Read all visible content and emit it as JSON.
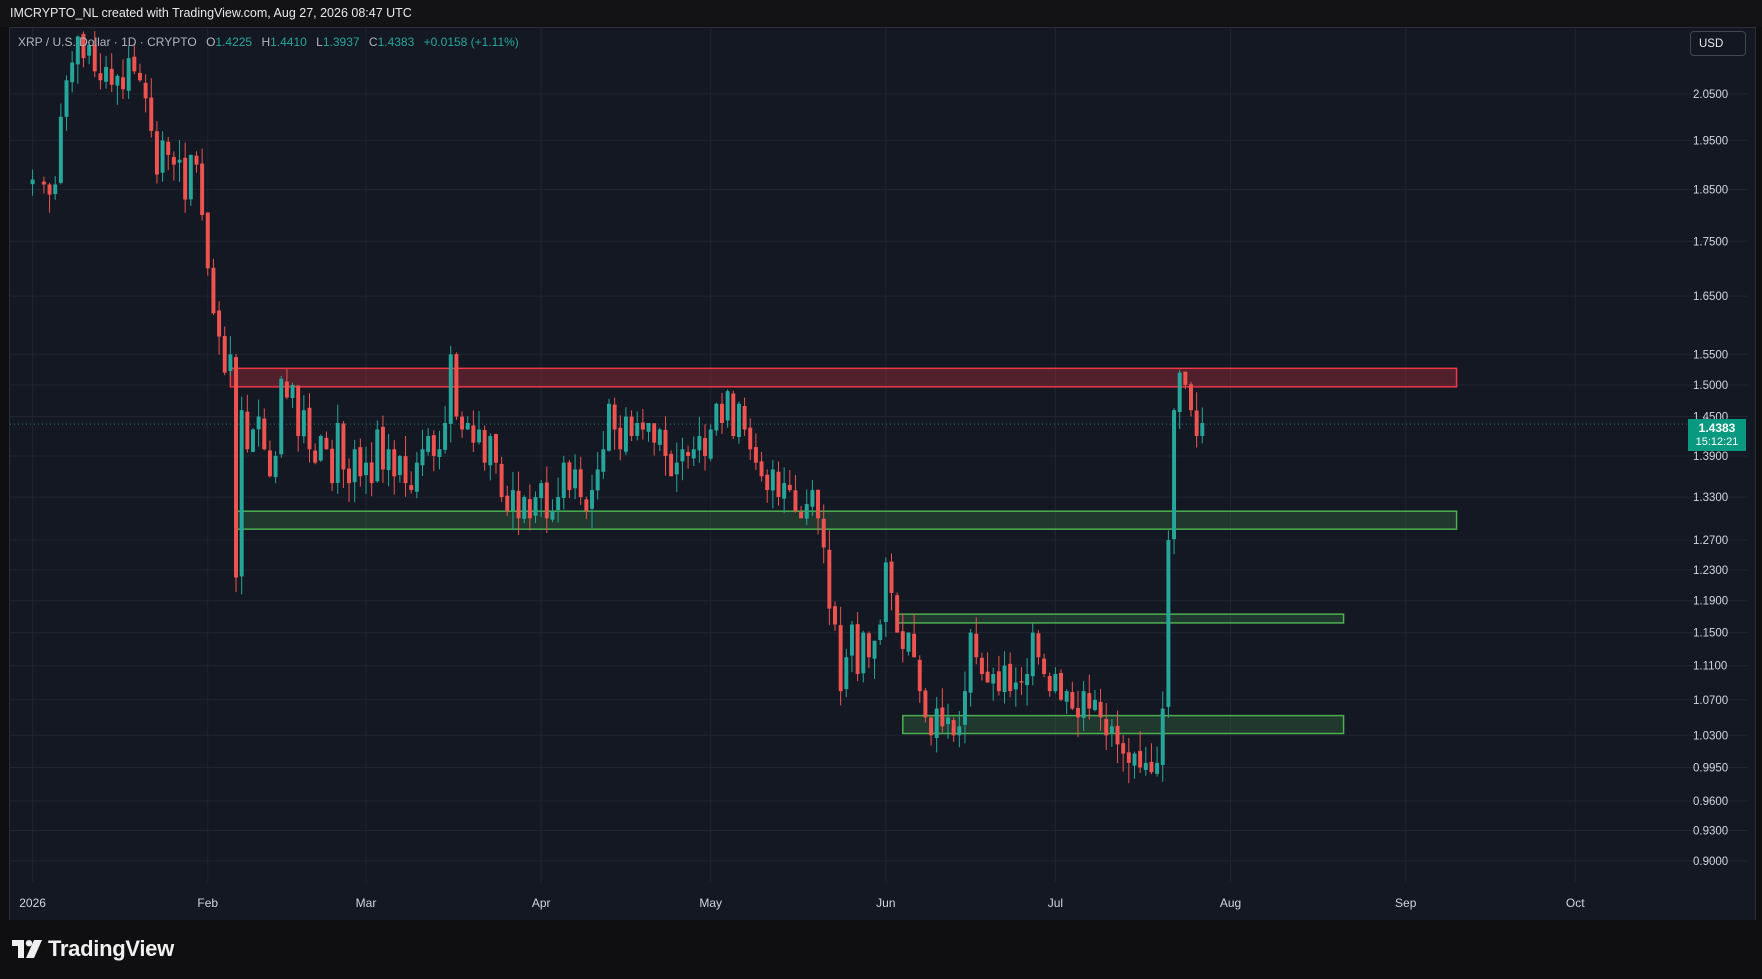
{
  "header": {
    "attribution": "IMCRYPTO_NL created with TradingView.com, Aug 27, 2026 08:47 UTC"
  },
  "legend": {
    "symbol": "XRP / U.S. Dollar · 1D · CRYPTO",
    "open_label": "O",
    "open": "1.4225",
    "high_label": "H",
    "high": "1.4410",
    "low_label": "L",
    "low": "1.3937",
    "close_label": "C",
    "close": "1.4383",
    "change": "+0.0158 (+1.11%)"
  },
  "currency_button": "USD",
  "price_badge": {
    "price": "1.4383",
    "countdown": "15:12:21"
  },
  "brand": {
    "name": "TradingView"
  },
  "colors": {
    "up": "#26a69a",
    "down": "#ef5350",
    "resistance": "#f23645",
    "support": "#4caf50",
    "background": "#141823"
  },
  "chart_data": {
    "type": "candlestick",
    "interval": "1D",
    "y_scale": "log",
    "y_ticks": [
      2.05,
      1.95,
      1.85,
      1.75,
      1.65,
      1.55,
      1.5,
      1.45,
      1.39,
      1.33,
      1.27,
      1.23,
      1.19,
      1.15,
      1.11,
      1.07,
      1.03,
      0.995,
      0.96,
      0.93,
      0.9
    ],
    "y_tick_labels": [
      "2.0500",
      "1.9500",
      "1.8500",
      "1.7500",
      "1.6500",
      "1.5500",
      "1.5000",
      "1.4500",
      "1.3900",
      "1.3300",
      "1.2700",
      "1.2300",
      "1.1900",
      "1.1500",
      "1.1100",
      "1.0700",
      "1.0300",
      "0.9950",
      "0.9600",
      "0.9300",
      "0.9000"
    ],
    "x_labels": [
      {
        "label": "2026",
        "day": 0
      },
      {
        "label": "Feb",
        "day": 31
      },
      {
        "label": "Mar",
        "day": 59
      },
      {
        "label": "Apr",
        "day": 90
      },
      {
        "label": "May",
        "day": 120
      },
      {
        "label": "Jun",
        "day": 151
      },
      {
        "label": "Jul",
        "day": 181
      },
      {
        "label": "Aug",
        "day": 212
      },
      {
        "label": "Sep",
        "day": 243
      },
      {
        "label": "Oct",
        "day": 273
      }
    ],
    "x_range_days": [
      -4,
      288
    ],
    "y_range": [
      0.88,
      2.2
    ],
    "zones": [
      {
        "name": "resistance",
        "type": "resistance",
        "start_day": 35,
        "end_day": 252,
        "low": 1.497,
        "high": 1.527
      },
      {
        "name": "support",
        "type": "support",
        "start_day": 36,
        "end_day": 252,
        "low": 1.285,
        "high": 1.31
      },
      {
        "name": "support",
        "type": "support",
        "start_day": 153,
        "end_day": 232,
        "low": 1.162,
        "high": 1.173
      },
      {
        "name": "support",
        "type": "support",
        "start_day": 154,
        "end_day": 232,
        "low": 1.032,
        "high": 1.052
      }
    ],
    "anchors": [
      [
        0,
        1.87
      ],
      [
        2,
        1.86
      ],
      [
        3,
        1.84
      ],
      [
        4,
        1.86
      ],
      [
        5,
        2.0
      ],
      [
        6,
        2.08
      ],
      [
        7,
        2.12
      ],
      [
        8,
        2.18
      ],
      [
        9,
        2.13
      ],
      [
        10,
        2.16
      ],
      [
        11,
        2.1
      ],
      [
        12,
        2.08
      ],
      [
        13,
        2.11
      ],
      [
        14,
        2.07
      ],
      [
        15,
        2.09
      ],
      [
        16,
        2.06
      ],
      [
        17,
        2.13
      ],
      [
        18,
        2.1
      ],
      [
        19,
        2.08
      ],
      [
        20,
        2.04
      ],
      [
        21,
        1.97
      ],
      [
        22,
        1.88
      ],
      [
        23,
        1.95
      ],
      [
        24,
        1.92
      ],
      [
        25,
        1.9
      ],
      [
        26,
        1.91
      ],
      [
        27,
        1.83
      ],
      [
        28,
        1.92
      ],
      [
        29,
        1.9
      ],
      [
        30,
        1.8
      ],
      [
        31,
        1.7
      ],
      [
        32,
        1.62
      ],
      [
        33,
        1.58
      ],
      [
        34,
        1.52
      ],
      [
        35,
        1.55
      ],
      [
        36,
        1.22
      ],
      [
        37,
        1.46
      ],
      [
        38,
        1.4
      ],
      [
        39,
        1.43
      ],
      [
        40,
        1.45
      ],
      [
        41,
        1.4
      ],
      [
        42,
        1.36
      ],
      [
        43,
        1.39
      ],
      [
        44,
        1.51
      ],
      [
        45,
        1.48
      ],
      [
        46,
        1.5
      ],
      [
        47,
        1.42
      ],
      [
        48,
        1.46
      ],
      [
        49,
        1.4
      ],
      [
        50,
        1.38
      ],
      [
        51,
        1.42
      ],
      [
        52,
        1.4
      ],
      [
        53,
        1.35
      ],
      [
        54,
        1.44
      ],
      [
        55,
        1.37
      ],
      [
        56,
        1.35
      ],
      [
        57,
        1.4
      ],
      [
        58,
        1.36
      ],
      [
        59,
        1.38
      ],
      [
        60,
        1.35
      ],
      [
        61,
        1.43
      ],
      [
        62,
        1.37
      ],
      [
        63,
        1.4
      ],
      [
        64,
        1.36
      ],
      [
        65,
        1.39
      ],
      [
        66,
        1.35
      ],
      [
        67,
        1.34
      ],
      [
        68,
        1.38
      ],
      [
        69,
        1.4
      ],
      [
        70,
        1.42
      ],
      [
        71,
        1.39
      ],
      [
        72,
        1.4
      ],
      [
        73,
        1.44
      ],
      [
        74,
        1.55
      ],
      [
        75,
        1.45
      ],
      [
        76,
        1.43
      ],
      [
        77,
        1.44
      ],
      [
        78,
        1.41
      ],
      [
        79,
        1.43
      ],
      [
        80,
        1.38
      ],
      [
        81,
        1.42
      ],
      [
        82,
        1.38
      ],
      [
        83,
        1.33
      ],
      [
        84,
        1.31
      ],
      [
        85,
        1.34
      ],
      [
        86,
        1.3
      ],
      [
        87,
        1.33
      ],
      [
        88,
        1.3
      ],
      [
        89,
        1.33
      ],
      [
        90,
        1.35
      ],
      [
        91,
        1.3
      ],
      [
        92,
        1.31
      ],
      [
        93,
        1.33
      ],
      [
        94,
        1.38
      ],
      [
        95,
        1.34
      ],
      [
        96,
        1.37
      ],
      [
        97,
        1.33
      ],
      [
        98,
        1.31
      ],
      [
        99,
        1.34
      ],
      [
        100,
        1.37
      ],
      [
        101,
        1.4
      ],
      [
        102,
        1.47
      ],
      [
        103,
        1.43
      ],
      [
        104,
        1.4
      ],
      [
        105,
        1.45
      ],
      [
        106,
        1.42
      ],
      [
        107,
        1.44
      ],
      [
        108,
        1.43
      ],
      [
        109,
        1.44
      ],
      [
        110,
        1.41
      ],
      [
        111,
        1.43
      ],
      [
        112,
        1.39
      ],
      [
        113,
        1.36
      ],
      [
        114,
        1.38
      ],
      [
        115,
        1.4
      ],
      [
        116,
        1.39
      ],
      [
        117,
        1.4
      ],
      [
        118,
        1.42
      ],
      [
        119,
        1.39
      ],
      [
        120,
        1.43
      ],
      [
        121,
        1.47
      ],
      [
        122,
        1.44
      ],
      [
        123,
        1.49
      ],
      [
        124,
        1.42
      ],
      [
        125,
        1.47
      ],
      [
        126,
        1.43
      ],
      [
        127,
        1.4
      ],
      [
        128,
        1.38
      ],
      [
        129,
        1.36
      ],
      [
        130,
        1.34
      ],
      [
        131,
        1.37
      ],
      [
        132,
        1.33
      ],
      [
        133,
        1.35
      ],
      [
        134,
        1.34
      ],
      [
        135,
        1.31
      ],
      [
        136,
        1.3
      ],
      [
        137,
        1.32
      ],
      [
        138,
        1.34
      ],
      [
        139,
        1.3
      ],
      [
        140,
        1.26
      ],
      [
        141,
        1.18
      ],
      [
        142,
        1.16
      ],
      [
        143,
        1.08
      ],
      [
        144,
        1.12
      ],
      [
        145,
        1.16
      ],
      [
        146,
        1.1
      ],
      [
        147,
        1.15
      ],
      [
        148,
        1.12
      ],
      [
        149,
        1.14
      ],
      [
        150,
        1.16
      ],
      [
        151,
        1.24
      ],
      [
        152,
        1.2
      ],
      [
        153,
        1.15
      ],
      [
        154,
        1.13
      ],
      [
        155,
        1.15
      ],
      [
        156,
        1.12
      ],
      [
        157,
        1.08
      ],
      [
        158,
        1.05
      ],
      [
        159,
        1.03
      ],
      [
        160,
        1.06
      ],
      [
        161,
        1.04
      ],
      [
        162,
        1.05
      ],
      [
        163,
        1.03
      ],
      [
        164,
        1.04
      ],
      [
        165,
        1.08
      ],
      [
        166,
        1.15
      ],
      [
        167,
        1.12
      ],
      [
        168,
        1.1
      ],
      [
        169,
        1.09
      ],
      [
        170,
        1.1
      ],
      [
        171,
        1.08
      ],
      [
        172,
        1.11
      ],
      [
        173,
        1.08
      ],
      [
        174,
        1.09
      ],
      [
        175,
        1.09
      ],
      [
        176,
        1.1
      ],
      [
        177,
        1.15
      ],
      [
        178,
        1.12
      ],
      [
        179,
        1.1
      ],
      [
        180,
        1.08
      ],
      [
        181,
        1.1
      ],
      [
        182,
        1.07
      ],
      [
        183,
        1.08
      ],
      [
        184,
        1.06
      ],
      [
        185,
        1.05
      ],
      [
        186,
        1.08
      ],
      [
        187,
        1.06
      ],
      [
        188,
        1.07
      ],
      [
        189,
        1.05
      ],
      [
        190,
        1.03
      ],
      [
        191,
        1.04
      ],
      [
        192,
        1.02
      ],
      [
        193,
        1.01
      ],
      [
        194,
        1.0
      ],
      [
        195,
        1.01
      ],
      [
        196,
        0.995
      ],
      [
        197,
        1.0
      ],
      [
        198,
        0.99
      ],
      [
        199,
        1.0
      ],
      [
        200,
        1.06
      ],
      [
        201,
        1.27
      ],
      [
        202,
        1.46
      ],
      [
        203,
        1.52
      ],
      [
        204,
        1.5
      ],
      [
        205,
        1.46
      ],
      [
        206,
        1.42
      ],
      [
        207,
        1.44
      ]
    ]
  }
}
